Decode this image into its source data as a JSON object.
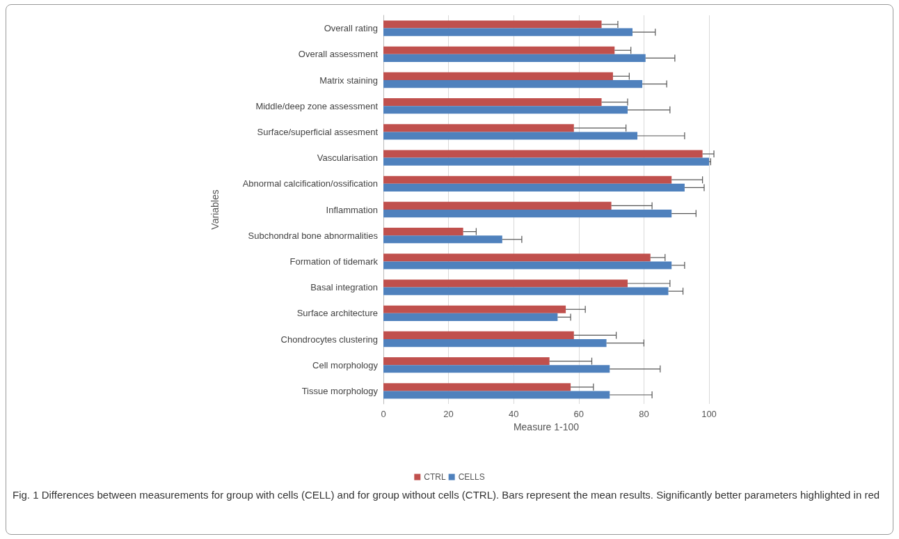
{
  "chart_data": {
    "type": "bar",
    "orientation": "horizontal",
    "categories": [
      "Overall rating",
      "Overall assessment",
      "Matrix staining",
      "Middle/deep zone assessment",
      "Surface/superficial assesment",
      "Vascularisation",
      "Abnormal calcification/ossification",
      "Inflammation",
      "Subchondral bone abnormalities",
      "Formation of tidemark",
      "Basal integration",
      "Surface architecture",
      "Chondrocytes clustering",
      "Cell morphology",
      "Tissue morphology"
    ],
    "series": [
      {
        "name": "CTRL",
        "color": "#c0504d",
        "values": [
          67,
          71,
          70.5,
          67,
          58.5,
          98,
          88.5,
          70,
          24.5,
          82,
          75,
          56,
          58.5,
          51,
          57.5
        ],
        "errors": [
          [
            67,
            72
          ],
          [
            71,
            76
          ],
          [
            70.5,
            75.5
          ],
          [
            67,
            75
          ],
          [
            58.5,
            74.5
          ],
          [
            98,
            101.5
          ],
          [
            88.5,
            98
          ],
          [
            70,
            82.5
          ],
          [
            24.5,
            28.5
          ],
          [
            82,
            86.5
          ],
          [
            75,
            88
          ],
          [
            56,
            62
          ],
          [
            58.5,
            71.5
          ],
          [
            51,
            64
          ],
          [
            57.5,
            64.5
          ]
        ]
      },
      {
        "name": "CELLS",
        "color": "#4f81bd",
        "values": [
          76.5,
          80.5,
          79.5,
          75,
          78,
          100,
          92.5,
          88.5,
          36.5,
          88.5,
          87.5,
          53.5,
          68.5,
          69.5,
          69.5
        ],
        "errors": [
          [
            76.5,
            83.5
          ],
          [
            80.5,
            89.5
          ],
          [
            79.5,
            87
          ],
          [
            75,
            88
          ],
          [
            78,
            92.5
          ],
          [
            100,
            100.5
          ],
          [
            92.5,
            98.5
          ],
          [
            88.5,
            96
          ],
          [
            36.5,
            42.5
          ],
          [
            88.5,
            92.5
          ],
          [
            87.5,
            92
          ],
          [
            53.5,
            57.5
          ],
          [
            68.5,
            80
          ],
          [
            69.5,
            85
          ],
          [
            69.5,
            82.5
          ]
        ]
      }
    ],
    "xlim": [
      0,
      100
    ],
    "xticks": [
      0,
      20,
      40,
      60,
      80,
      100
    ],
    "xlabel": "Measure 1-100",
    "ylabel": "Variables",
    "grid": "x",
    "legend": "bottom",
    "annotations": [
      "Fig. 1 Differences between measurements for group with cells (CELL) and for group without cells (CTRL). Bars represent the mean results. Significantly better parameters highlighted in red"
    ]
  }
}
